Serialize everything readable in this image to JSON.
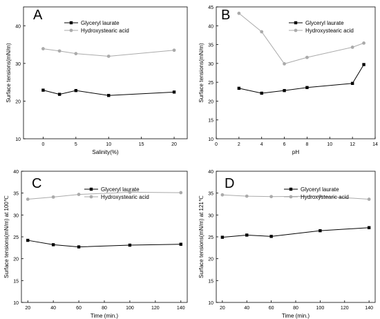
{
  "chart_data": [
    {
      "panel_label": "A",
      "type": "line",
      "xlabel": "Salinity(%)",
      "ylabel": "Surface tensions(mN/m)",
      "xlim": [
        -3,
        22
      ],
      "ylim": [
        10,
        45
      ],
      "xticks": [
        0,
        5,
        10,
        15,
        20
      ],
      "yticks": [
        10,
        20,
        30,
        40
      ],
      "legend_position": "top-left",
      "series": [
        {
          "name": "Glyceryl laurate",
          "color": "#000000",
          "marker": "square",
          "x": [
            0,
            2.5,
            5,
            10,
            20
          ],
          "y": [
            22.9,
            21.8,
            22.8,
            21.5,
            22.4
          ]
        },
        {
          "name": "Hydroxystearic acid",
          "color": "#aaaaaa",
          "marker": "circle",
          "x": [
            0,
            2.5,
            5,
            10,
            20
          ],
          "y": [
            33.9,
            33.3,
            32.6,
            31.9,
            33.5
          ]
        }
      ]
    },
    {
      "panel_label": "B",
      "type": "line",
      "xlabel": "pH",
      "ylabel": "Surface tensions(mN/m)",
      "xlim": [
        0,
        14
      ],
      "ylim": [
        10,
        45
      ],
      "xticks": [
        0,
        2,
        4,
        6,
        8,
        10,
        12,
        14
      ],
      "yticks": [
        10,
        15,
        20,
        25,
        30,
        35,
        40,
        45
      ],
      "legend_position": "top-right",
      "series": [
        {
          "name": "Glyceryl laurate",
          "color": "#000000",
          "marker": "square",
          "x": [
            2,
            4,
            6,
            8,
            12,
            13
          ],
          "y": [
            23.4,
            22.1,
            22.8,
            23.6,
            24.7,
            29.7
          ]
        },
        {
          "name": "Hydroxystearic acid",
          "color": "#aaaaaa",
          "marker": "circle",
          "x": [
            2,
            4,
            6,
            8,
            12,
            13
          ],
          "y": [
            43.3,
            38.4,
            29.9,
            31.6,
            34.3,
            35.4
          ]
        }
      ]
    },
    {
      "panel_label": "C",
      "type": "line",
      "xlabel": "Time (min.)",
      "ylabel": "Surface tensions(mN/m) at 100℃",
      "xlim": [
        15,
        145
      ],
      "ylim": [
        10,
        40
      ],
      "xticks": [
        20,
        40,
        60,
        80,
        100,
        120,
        140
      ],
      "yticks": [
        10,
        15,
        20,
        25,
        30,
        35,
        40
      ],
      "legend_position": "top-right",
      "series": [
        {
          "name": "Glyceryl laurate",
          "color": "#000000",
          "marker": "square",
          "x": [
            20,
            40,
            60,
            100,
            140
          ],
          "y": [
            24.2,
            23.2,
            22.7,
            23.1,
            23.3
          ]
        },
        {
          "name": "Hydroxystearic acid",
          "color": "#aaaaaa",
          "marker": "circle",
          "x": [
            20,
            40,
            60,
            100,
            140
          ],
          "y": [
            33.6,
            34.1,
            34.7,
            35.2,
            35.1
          ]
        }
      ]
    },
    {
      "panel_label": "D",
      "type": "line",
      "xlabel": "Time (min.)",
      "ylabel": "Surface tensions(mN/m) at 121℃",
      "xlim": [
        15,
        145
      ],
      "ylim": [
        10,
        40
      ],
      "xticks": [
        20,
        40,
        60,
        80,
        100,
        120,
        140
      ],
      "yticks": [
        10,
        15,
        20,
        25,
        30,
        35,
        40
      ],
      "legend_position": "top-right",
      "series": [
        {
          "name": "Glyceryl laurate",
          "color": "#000000",
          "marker": "square",
          "x": [
            20,
            40,
            60,
            100,
            140
          ],
          "y": [
            24.9,
            25.4,
            25.1,
            26.4,
            27.1
          ]
        },
        {
          "name": "Hydroxystearic acid",
          "color": "#aaaaaa",
          "marker": "circle",
          "x": [
            20,
            40,
            60,
            100,
            140
          ],
          "y": [
            34.6,
            34.3,
            34.2,
            34.3,
            33.6
          ]
        }
      ]
    }
  ]
}
